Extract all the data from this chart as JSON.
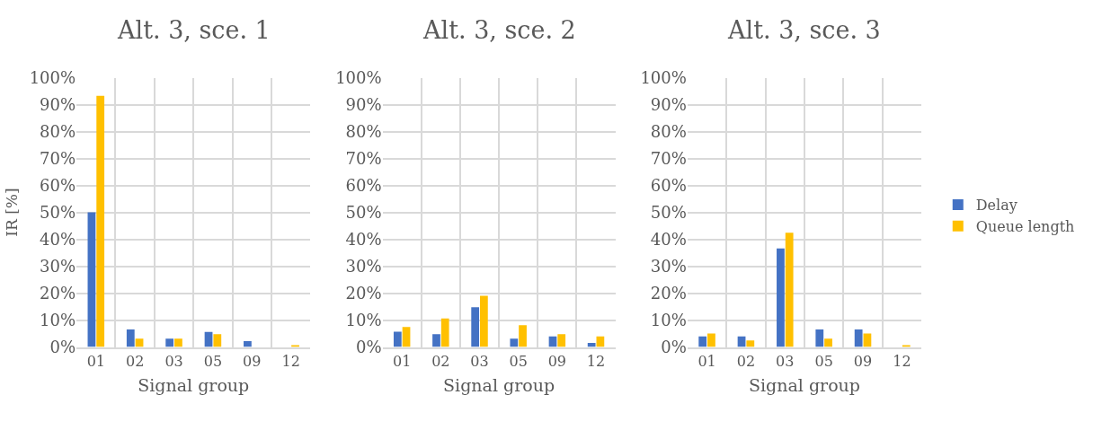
{
  "chart_data": [
    {
      "type": "bar",
      "title": "Alt. 3, sce. 1",
      "xlabel": "Signal group",
      "ylabel": "IR [%]",
      "categories": [
        "01",
        "02",
        "03",
        "05",
        "09",
        "12"
      ],
      "series": [
        {
          "color": "#4472c4",
          "values": [
            50,
            6.5,
            3.1,
            5.6,
            2.2,
            0
          ]
        },
        {
          "color": "#ffc000",
          "values": [
            93.3,
            3.1,
            3.1,
            4.8,
            0,
            0.6
          ]
        }
      ],
      "ylim": [
        0,
        100
      ],
      "yticks": [
        {
          "value": 0,
          "label": "0%"
        },
        {
          "value": 10,
          "label": "10%"
        },
        {
          "value": 20,
          "label": "20%"
        },
        {
          "value": 30,
          "label": "30%"
        },
        {
          "value": 40,
          "label": "40%"
        },
        {
          "value": 50,
          "label": "50%"
        },
        {
          "value": 60,
          "label": "60%"
        },
        {
          "value": 70,
          "label": "70%"
        },
        {
          "value": 80,
          "label": "80%"
        },
        {
          "value": 90,
          "label": "90%"
        },
        {
          "value": 100,
          "label": "100%"
        }
      ],
      "grid": true
    },
    {
      "type": "bar",
      "title": "Alt. 3, sce. 2",
      "xlabel": "Signal group",
      "categories": [
        "01",
        "02",
        "03",
        "05",
        "09",
        "12"
      ],
      "series": [
        {
          "color": "#4472c4",
          "values": [
            5.7,
            4.8,
            14.8,
            3.1,
            3.9,
            1.5
          ]
        },
        {
          "color": "#ffc000",
          "values": [
            7.4,
            10.6,
            19,
            8.1,
            4.8,
            3.9
          ]
        }
      ],
      "ylim": [
        0,
        100
      ],
      "yticks": [
        {
          "value": 0,
          "label": "0%"
        },
        {
          "value": 10,
          "label": "10%"
        },
        {
          "value": 20,
          "label": "20%"
        },
        {
          "value": 30,
          "label": "30%"
        },
        {
          "value": 40,
          "label": "40%"
        },
        {
          "value": 50,
          "label": "50%"
        },
        {
          "value": 60,
          "label": "60%"
        },
        {
          "value": 70,
          "label": "70%"
        },
        {
          "value": 80,
          "label": "80%"
        },
        {
          "value": 90,
          "label": "90%"
        },
        {
          "value": 100,
          "label": "100%"
        }
      ],
      "grid": true
    },
    {
      "type": "bar",
      "title": "Alt. 3, sce. 3",
      "xlabel": "Signal group",
      "categories": [
        "01",
        "02",
        "03",
        "05",
        "09",
        "12"
      ],
      "series": [
        {
          "name": "Delay",
          "color": "#4472c4",
          "values": [
            3.9,
            3.9,
            36.6,
            6.5,
            6.5,
            0
          ]
        },
        {
          "name": "Queue length",
          "color": "#ffc000",
          "values": [
            5,
            2.4,
            42.4,
            3.1,
            5,
            0.7
          ]
        }
      ],
      "ylim": [
        0,
        100
      ],
      "yticks": [
        {
          "value": 0,
          "label": "0%"
        },
        {
          "value": 10,
          "label": "10%"
        },
        {
          "value": 20,
          "label": "20%"
        },
        {
          "value": 30,
          "label": "30%"
        },
        {
          "value": 40,
          "label": "40%"
        },
        {
          "value": 50,
          "label": "50%"
        },
        {
          "value": 60,
          "label": "60%"
        },
        {
          "value": 70,
          "label": "70%"
        },
        {
          "value": 80,
          "label": "80%"
        },
        {
          "value": 90,
          "label": "90%"
        },
        {
          "value": 100,
          "label": "100%"
        }
      ],
      "grid": true,
      "legend": "right"
    }
  ]
}
